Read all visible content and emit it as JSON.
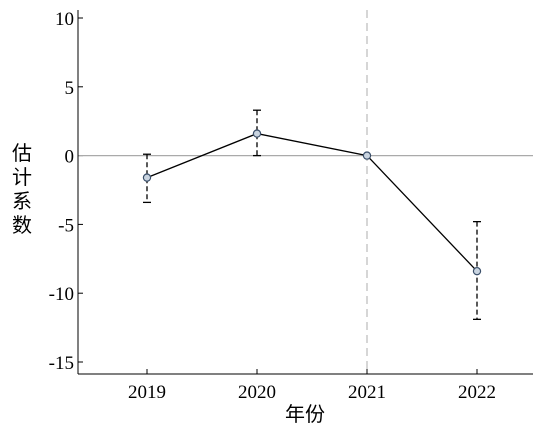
{
  "chart_data": {
    "type": "line",
    "x": [
      "2019",
      "2020",
      "2021",
      "2022"
    ],
    "series": [
      {
        "values": [
          -1.6,
          1.6,
          0,
          -8.4
        ],
        "ci_lower": [
          -3.4,
          0,
          0,
          -11.9
        ],
        "ci_upper": [
          0.1,
          3.3,
          0,
          -4.8
        ]
      }
    ],
    "xlabel": "年份",
    "ylabel": "估计系数",
    "ylim": [
      -15,
      10
    ],
    "yticks": [
      "10",
      "5",
      "0",
      "-5",
      "-10",
      "-15"
    ],
    "xticks": [
      "2019",
      "2020",
      "2021",
      "2022"
    ],
    "reference_line_y": 0,
    "reference_line_x": "2021",
    "grid": false,
    "colors": {
      "line": "#000000",
      "marker_fill": "#c9d4e0",
      "marker_stroke": "#3a4f6a",
      "zero_line": "#aaaaaa",
      "event_line": "#bbbbbb"
    }
  }
}
